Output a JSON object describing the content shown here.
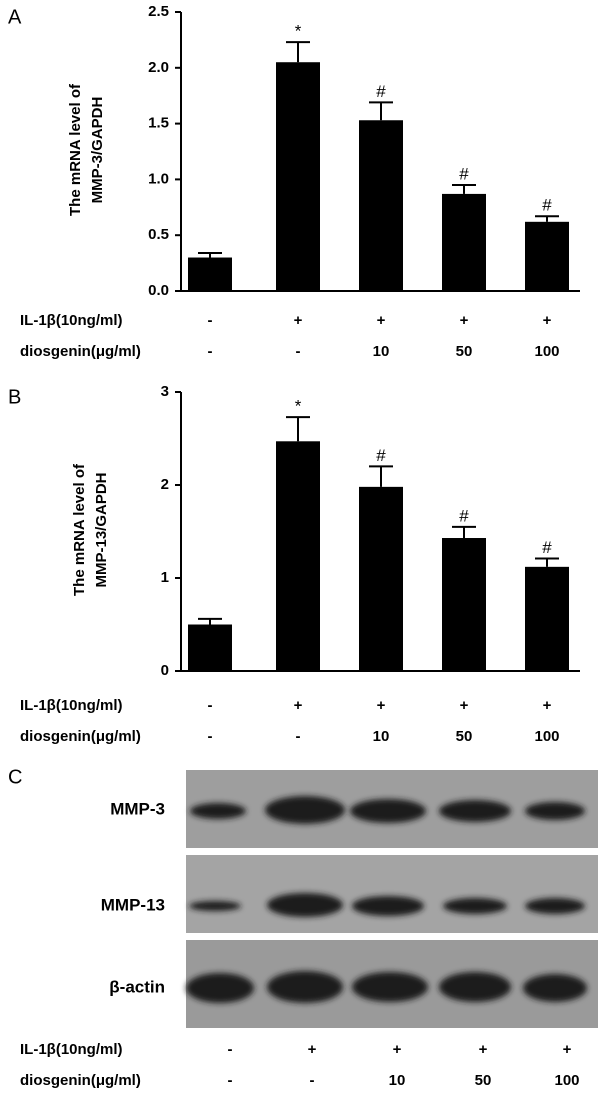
{
  "chart_data": [
    {
      "type": "bar",
      "panel_label": "A",
      "ylabel": [
        "The mRNA level of",
        "MMP-3/GAPDH"
      ],
      "values": [
        0.3,
        2.05,
        1.53,
        0.87,
        0.62
      ],
      "errors": [
        0.04,
        0.18,
        0.16,
        0.08,
        0.05
      ],
      "significance": [
        null,
        "*",
        "#",
        "#",
        "#"
      ],
      "color": "#000000",
      "ylim": [
        0,
        2.5
      ],
      "yticks": [
        {
          "value": 0,
          "label": "0.0"
        },
        {
          "value": 0.5,
          "label": "0.5"
        },
        {
          "value": 1,
          "label": "1.0"
        },
        {
          "value": 1.5,
          "label": "1.5"
        },
        {
          "value": 2,
          "label": "2.0"
        },
        {
          "value": 2.5,
          "label": "2.5"
        }
      ],
      "conditions": [
        {
          "name": "IL-1β(10ng/ml)",
          "values": [
            "-",
            "+",
            "+",
            "+",
            "+"
          ]
        },
        {
          "name": "diosgenin(μg/ml)",
          "values": [
            "-",
            "-",
            "10",
            "50",
            "100"
          ]
        }
      ]
    },
    {
      "type": "bar",
      "panel_label": "B",
      "ylabel": [
        "The mRNA level of",
        "MMP-13/GAPDH"
      ],
      "values": [
        0.5,
        2.47,
        1.98,
        1.43,
        1.12
      ],
      "errors": [
        0.06,
        0.26,
        0.22,
        0.12,
        0.09
      ],
      "significance": [
        null,
        "*",
        "#",
        "#",
        "#"
      ],
      "color": "#000000",
      "ylim": [
        0,
        3
      ],
      "yticks": [
        0,
        1,
        2,
        3
      ],
      "conditions": [
        {
          "name": "IL-1β(10ng/ml)",
          "values": [
            "-",
            "+",
            "+",
            "+",
            "+"
          ]
        },
        {
          "name": "diosgenin(μg/ml)",
          "values": [
            "-",
            "-",
            "10",
            "50",
            "100"
          ]
        }
      ]
    }
  ],
  "blot": {
    "panel_label": "C",
    "rows": [
      "MMP-3",
      "MMP-13",
      "β-actin"
    ],
    "conditions": [
      {
        "name": "IL-1β(10ng/ml)",
        "values": [
          "-",
          "+",
          "+",
          "+",
          "+"
        ]
      },
      {
        "name": "diosgenin(μg/ml)",
        "values": [
          "-",
          "-",
          "10",
          "50",
          "100"
        ]
      }
    ]
  }
}
